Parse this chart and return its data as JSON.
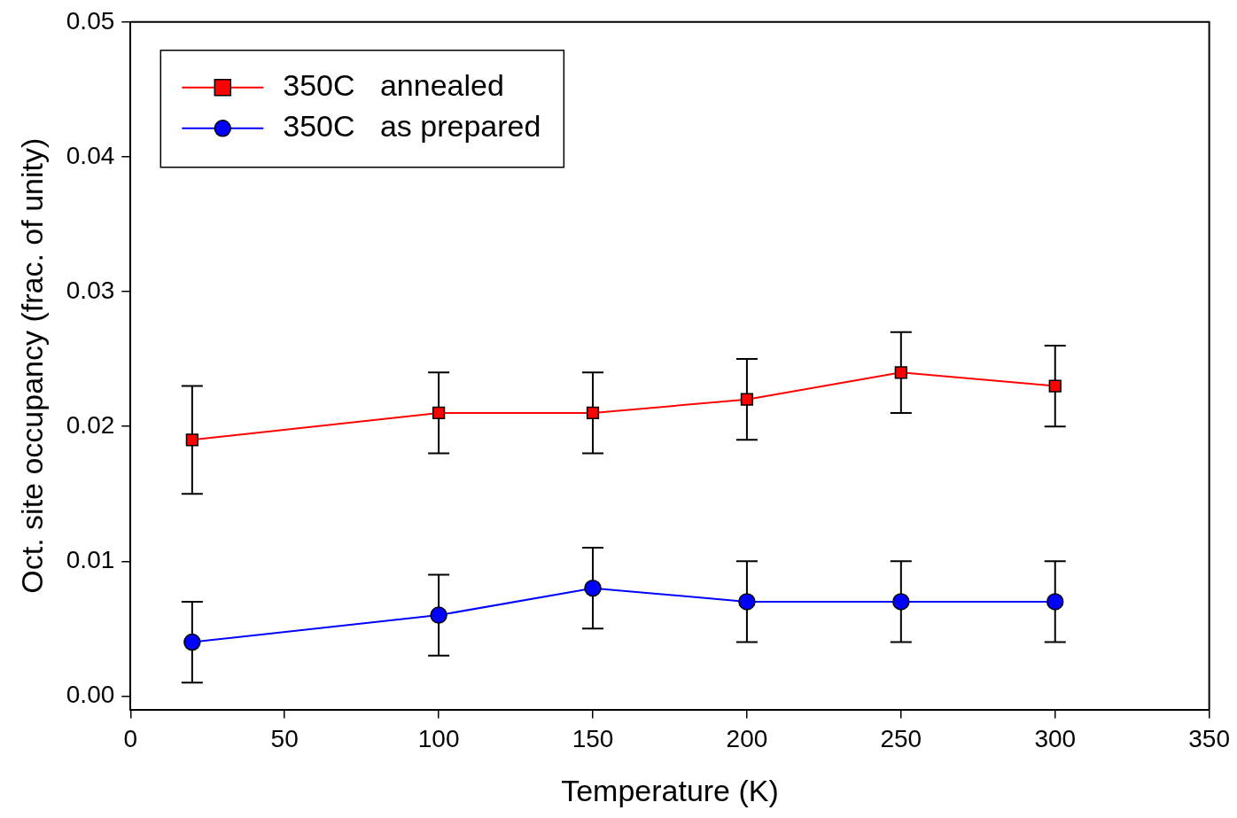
{
  "chart_data": {
    "type": "line",
    "xlabel": "Temperature (K)",
    "ylabel": "Oct. site occupancy (frac. of unity)",
    "x": [
      20,
      100,
      150,
      200,
      250,
      300
    ],
    "series": [
      {
        "name": "350C   annealed",
        "color": "#ff0000",
        "marker": "square",
        "values": [
          0.019,
          0.021,
          0.021,
          0.022,
          0.024,
          0.023
        ],
        "errors": [
          0.004,
          0.003,
          0.003,
          0.003,
          0.003,
          0.003
        ]
      },
      {
        "name": "350C   as prepared",
        "color": "#0000ff",
        "marker": "circle",
        "values": [
          0.004,
          0.006,
          0.008,
          0.007,
          0.007,
          0.007
        ],
        "errors": [
          0.003,
          0.003,
          0.003,
          0.003,
          0.003,
          0.003
        ]
      }
    ],
    "xlim": [
      0,
      350
    ],
    "xticks": [
      0,
      50,
      100,
      150,
      200,
      250,
      300,
      350
    ],
    "ylim": [
      -0.001,
      0.05
    ],
    "yticks": [
      {
        "value": 0,
        "label": "0.00"
      },
      0.01,
      0.02,
      0.03,
      0.04,
      0.05
    ],
    "grid": false,
    "legend": "top left",
    "line_style": "solid"
  }
}
